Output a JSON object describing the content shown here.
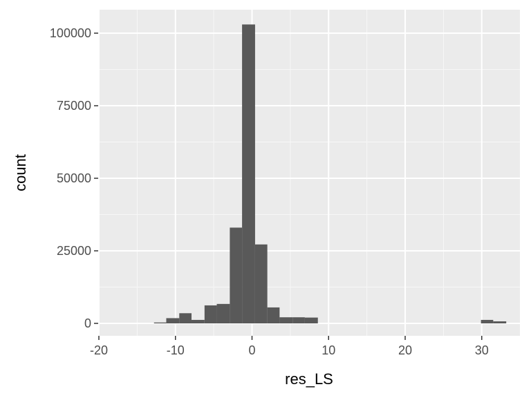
{
  "chart_data": {
    "type": "bar",
    "title": "",
    "xlabel": "res_LS",
    "ylabel": "count",
    "xlim": [
      -20,
      35
    ],
    "ylim": [
      -5000,
      107500
    ],
    "x_ticks": [
      -20,
      -10,
      0,
      10,
      20,
      30
    ],
    "y_ticks": [
      0,
      25000,
      50000,
      75000,
      100000
    ],
    "bin_width": 1.64,
    "bins": [
      {
        "start": -12.8,
        "end": -11.2,
        "count": 300
      },
      {
        "start": -11.2,
        "end": -9.5,
        "count": 1800
      },
      {
        "start": -9.5,
        "end": -7.9,
        "count": 3500
      },
      {
        "start": -7.9,
        "end": -6.2,
        "count": 1200
      },
      {
        "start": -6.2,
        "end": -4.6,
        "count": 6200
      },
      {
        "start": -4.6,
        "end": -2.9,
        "count": 6700
      },
      {
        "start": -2.9,
        "end": -1.3,
        "count": 33000
      },
      {
        "start": -1.3,
        "end": 0.4,
        "count": 103000
      },
      {
        "start": 0.4,
        "end": 2.0,
        "count": 27200
      },
      {
        "start": 2.0,
        "end": 3.6,
        "count": 5500
      },
      {
        "start": 3.6,
        "end": 5.3,
        "count": 2100
      },
      {
        "start": 5.3,
        "end": 6.9,
        "count": 2100
      },
      {
        "start": 6.9,
        "end": 8.6,
        "count": 2000
      },
      {
        "start": 29.9,
        "end": 31.5,
        "count": 1200
      },
      {
        "start": 31.5,
        "end": 33.2,
        "count": 700
      }
    ],
    "colors": {
      "panel": "#ebebeb",
      "grid_major": "#ffffff",
      "bar": "#595959",
      "tick_label": "#4d4d4d",
      "axis_title": "#000000"
    },
    "grid": true,
    "legend": "none"
  }
}
